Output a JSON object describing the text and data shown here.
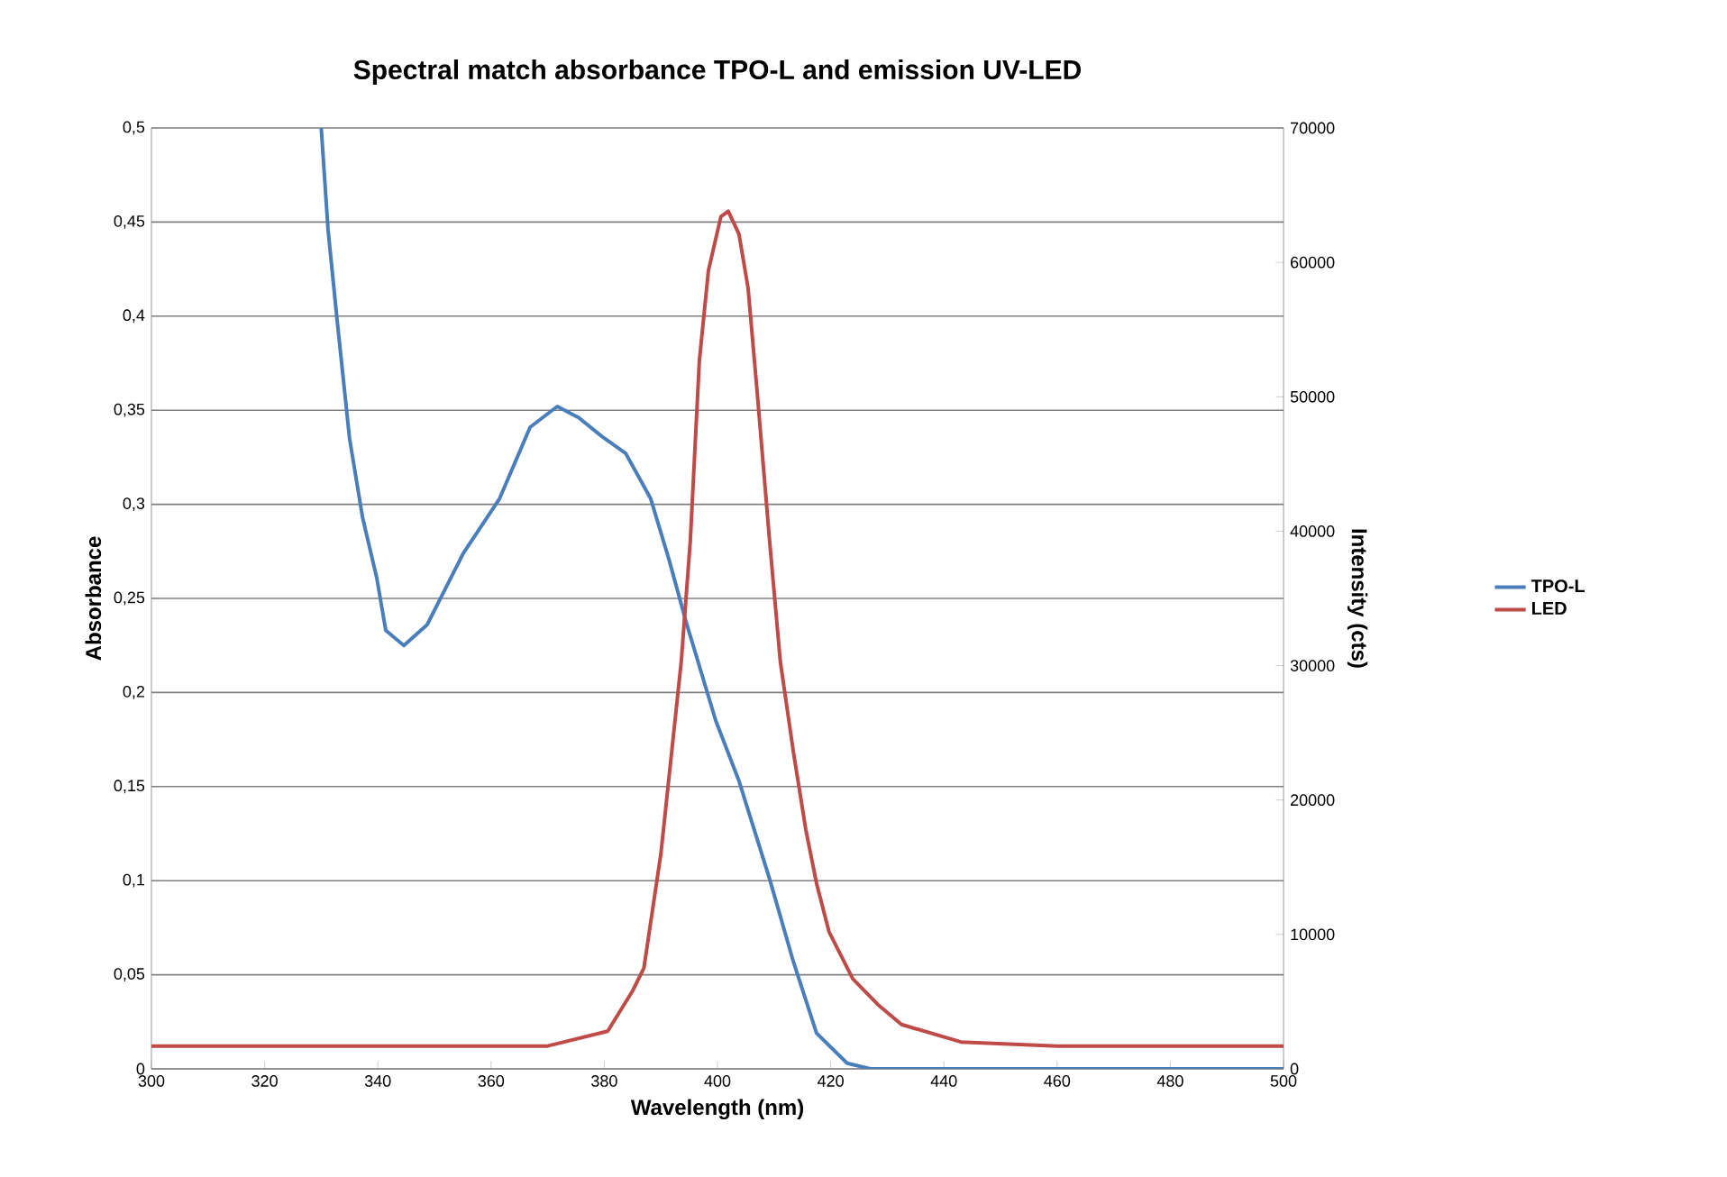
{
  "chart_data": {
    "type": "line",
    "title": "Spectral match absorbance TPO-L and emission UV-LED",
    "xlabel": "Wavelength (nm)",
    "ylabel": "Absorbance",
    "y2label": "Intensity (cts)",
    "xlim": [
      300,
      500
    ],
    "xticks": [
      300,
      320,
      340,
      360,
      380,
      400,
      420,
      440,
      460,
      480,
      500
    ],
    "ylim": [
      0,
      0.5
    ],
    "yticks": [
      {
        "value": 0,
        "label": "0"
      },
      {
        "value": 0.05,
        "label": "0,05"
      },
      {
        "value": 0.1,
        "label": "0,1"
      },
      {
        "value": 0.15,
        "label": "0,15"
      },
      {
        "value": 0.2,
        "label": "0,2"
      },
      {
        "value": 0.25,
        "label": "0,25"
      },
      {
        "value": 0.3,
        "label": "0,3"
      },
      {
        "value": 0.35,
        "label": "0,35"
      },
      {
        "value": 0.4,
        "label": "0,4"
      },
      {
        "value": 0.45,
        "label": "0,45"
      },
      {
        "value": 0.5,
        "label": "0,5"
      }
    ],
    "y2lim": [
      0,
      70000
    ],
    "y2ticks": [
      0,
      10000,
      20000,
      30000,
      40000,
      50000,
      60000,
      70000
    ],
    "grid": "y",
    "legend": "right",
    "marker": "none",
    "line_style": "solid",
    "series": [
      {
        "name": "TPO-L",
        "color": "#4a7ebb",
        "x": [
          330,
          331.2,
          332.8,
          335,
          337.3,
          339.8,
          341.4,
          344.6,
          348.7,
          355.1,
          361.5,
          366.9,
          371.7,
          375.5,
          379.6,
          383.8,
          388.2,
          391.4,
          394.5,
          399.7,
          403.8,
          409.2,
          413.4,
          417.5,
          422.9,
          427,
          450,
          500
        ],
        "values": [
          0.5,
          0.446,
          0.398,
          0.335,
          0.293,
          0.261,
          0.233,
          0.225,
          0.236,
          0.274,
          0.303,
          0.341,
          0.352,
          0.346,
          0.336,
          0.327,
          0.303,
          0.271,
          0.237,
          0.185,
          0.153,
          0.101,
          0.057,
          0.019,
          0.003,
          0,
          0,
          0
        ]
      },
      {
        "name": "LED",
        "color": "#be4b48",
        "axis": "y2",
        "x": [
          300,
          340,
          370,
          380.6,
          385,
          387,
          390,
          393.6,
          395.2,
          396.8,
          398.4,
          400.6,
          401.9,
          403.8,
          405.4,
          407,
          409.2,
          411.1,
          413.4,
          415.6,
          417.5,
          419.7,
          423.9,
          428.3,
          432.5,
          443,
          460,
          500
        ],
        "values": [
          1700,
          1700,
          1700,
          2800,
          5800,
          7500,
          16000,
          30300,
          39300,
          52700,
          59400,
          63400,
          63800,
          62100,
          58100,
          50400,
          39300,
          30300,
          23600,
          17800,
          13800,
          10200,
          6700,
          4800,
          3300,
          2000,
          1700,
          1700
        ]
      }
    ]
  }
}
